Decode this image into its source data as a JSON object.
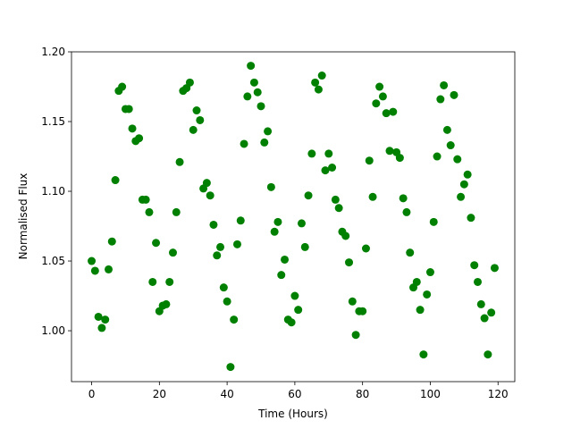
{
  "chart_data": {
    "type": "scatter",
    "x_label": "Time (Hours)",
    "y_label": "Normalised Flux",
    "color": "#008000",
    "x": [
      0,
      1,
      2,
      3,
      4,
      5,
      6,
      7,
      8,
      9,
      10,
      11,
      12,
      13,
      14,
      15,
      16,
      17,
      18,
      19,
      20,
      21,
      22,
      23,
      24,
      25,
      26,
      27,
      28,
      29,
      30,
      31,
      32,
      33,
      34,
      35,
      36,
      37,
      38,
      39,
      40,
      41,
      42,
      43,
      44,
      45,
      46,
      47,
      48,
      49,
      50,
      51,
      52,
      53,
      54,
      55,
      56,
      57,
      58,
      59,
      60,
      61,
      62,
      63,
      64,
      65,
      66,
      67,
      68,
      69,
      70,
      71,
      72,
      73,
      74,
      75,
      76,
      77,
      78,
      79,
      80,
      81,
      82,
      83,
      84,
      85,
      86,
      87,
      88,
      89,
      90,
      91,
      92,
      93,
      94,
      95,
      96,
      97,
      98,
      99,
      100,
      101,
      102,
      103,
      104,
      105,
      106,
      107,
      108,
      109,
      110,
      111,
      112,
      113,
      114,
      115,
      116,
      117,
      118,
      119
    ],
    "values": [
      1.05,
      1.043,
      1.01,
      1.002,
      1.008,
      1.044,
      1.064,
      1.108,
      1.172,
      1.175,
      1.159,
      1.159,
      1.145,
      1.136,
      1.138,
      1.094,
      1.094,
      1.085,
      1.035,
      1.063,
      1.014,
      1.018,
      1.019,
      1.035,
      1.056,
      1.085,
      1.121,
      1.172,
      1.174,
      1.178,
      1.144,
      1.158,
      1.151,
      1.102,
      1.106,
      1.097,
      1.076,
      1.054,
      1.06,
      1.031,
      1.021,
      0.974,
      1.008,
      1.062,
      1.079,
      1.134,
      1.168,
      1.19,
      1.178,
      1.171,
      1.161,
      1.135,
      1.143,
      1.103,
      1.071,
      1.078,
      1.04,
      1.051,
      1.008,
      1.006,
      1.025,
      1.015,
      1.077,
      1.06,
      1.097,
      1.127,
      1.178,
      1.173,
      1.183,
      1.115,
      1.127,
      1.117,
      1.094,
      1.088,
      1.071,
      1.068,
      1.049,
      1.021,
      0.997,
      1.014,
      1.014,
      1.059,
      1.122,
      1.096,
      1.163,
      1.175,
      1.168,
      1.156,
      1.129,
      1.157,
      1.128,
      1.124,
      1.095,
      1.085,
      1.056,
      1.031,
      1.035,
      1.015,
      0.983,
      1.026,
      1.042,
      1.078,
      1.125,
      1.166,
      1.176,
      1.144,
      1.133,
      1.169,
      1.123,
      1.096,
      1.105,
      1.112,
      1.081,
      1.047,
      1.035,
      1.019,
      1.009,
      0.983,
      1.013,
      1.045
    ],
    "xlim": [
      -5.95,
      124.95
    ],
    "xticks": [
      0,
      20,
      40,
      60,
      80,
      100,
      120
    ],
    "ylim": [
      0.9635,
      1.2
    ],
    "yticks": [
      {
        "value": 1.0,
        "label": "1.00"
      },
      {
        "value": 1.05,
        "label": "1.05"
      },
      {
        "value": 1.1,
        "label": "1.10"
      },
      {
        "value": 1.15,
        "label": "1.15"
      },
      {
        "value": 1.2,
        "label": "1.20"
      }
    ]
  }
}
